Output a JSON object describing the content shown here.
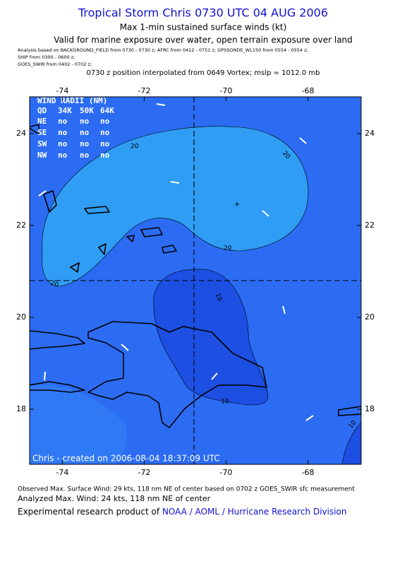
{
  "header": {
    "title": "Tropical Storm Chris 0730 UTC 04 AUG 2006",
    "subtitle": "Max 1-min sustained surface winds (kt)",
    "validity": "Valid for marine exposure over water, open terrain exposure over land",
    "analysis_lines": [
      "Analysis based on  BACKGROUND_FIELD from 0730 - 0730 z;  AFRC from 0412 - 0751 z;  GPSSONDE_WL150 from 0554 - 0554 z;",
      "SHIP from 0300 - 0600 z;",
      "GOES_SWIR from 0402 - 0702 z;"
    ],
    "position_note": "0730 z position interpolated from 0649 Vortex; mslp = 1012.0 mb"
  },
  "map": {
    "xlim": [
      -74.8,
      -66.7
    ],
    "ylim": [
      16.8,
      24.8
    ],
    "xticks": [
      -74,
      -72,
      -70,
      -68
    ],
    "yticks": [
      18,
      20,
      22,
      24
    ],
    "wind_radii": {
      "title": "WIND RADII (NM)",
      "columns": [
        "QD",
        "34K",
        "50K",
        "64K"
      ],
      "rows": [
        [
          "NE",
          "no",
          "no",
          "no"
        ],
        [
          "SE",
          "no",
          "no",
          "no"
        ],
        [
          "SW",
          "no",
          "no",
          "no"
        ],
        [
          "NW",
          "no",
          "no",
          "no"
        ]
      ]
    },
    "contour_labels": [
      "20",
      "20",
      "20",
      "20",
      "10",
      "10",
      "10"
    ],
    "credit": "Chris - created on 2006-08-04 18:37:09 UTC"
  },
  "footer": {
    "observed": "Observed Max. Surface Wind: 29 kts, 118 nm NE of center based on 0702 z GOES_SWIR sfc measurement",
    "analyzed": "Analyzed Max. Wind: 24 kts, 118 nm NE of center",
    "product_prefix": "Experimental research product of",
    "product_link": "NOAA / AOML / Hurricane Research Division"
  }
}
